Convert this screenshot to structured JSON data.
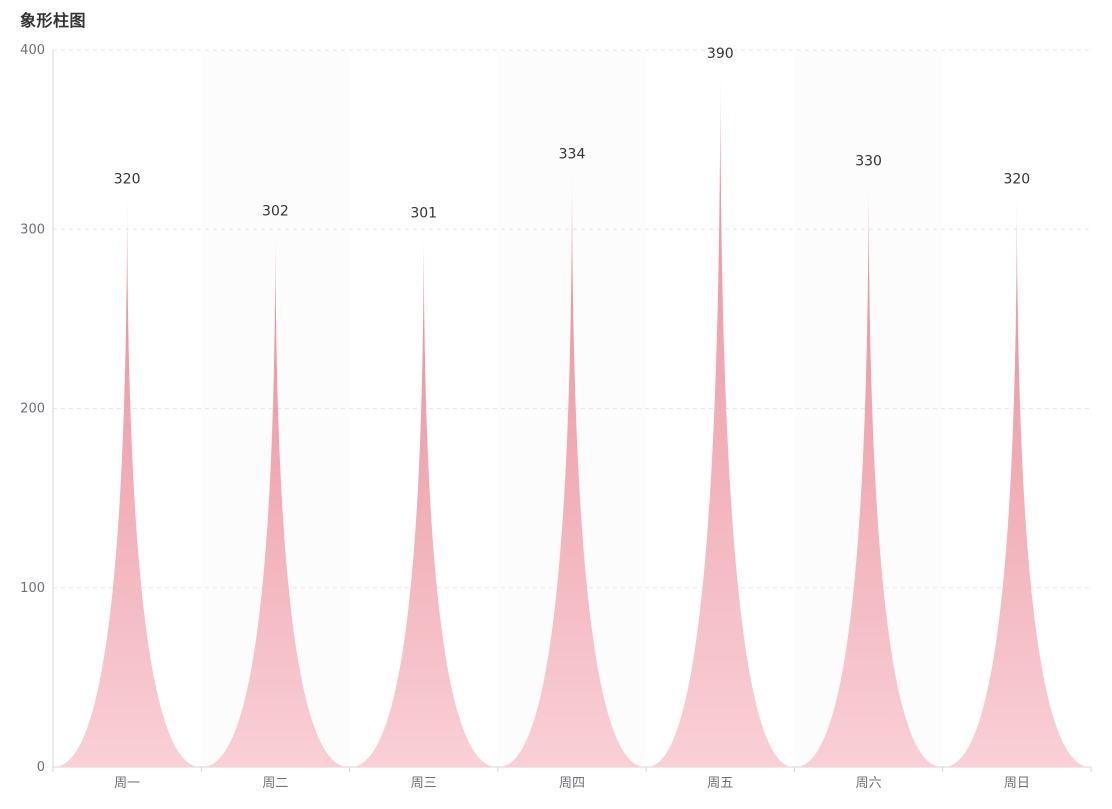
{
  "chart_data": {
    "type": "bar",
    "title": "象形柱图",
    "categories": [
      "周一",
      "周二",
      "周三",
      "周四",
      "周五",
      "周六",
      "周日"
    ],
    "values": [
      320,
      302,
      301,
      334,
      390,
      330,
      320
    ],
    "ylim": [
      0,
      400
    ],
    "yticks": [
      "0",
      "100",
      "200",
      "300",
      "400"
    ],
    "grid": true,
    "series_color_top": "#e98a96",
    "series_color_bottom": "#f9d0d6",
    "value_labels": [
      "320",
      "302",
      "301",
      "334",
      "390",
      "330",
      "320"
    ]
  }
}
